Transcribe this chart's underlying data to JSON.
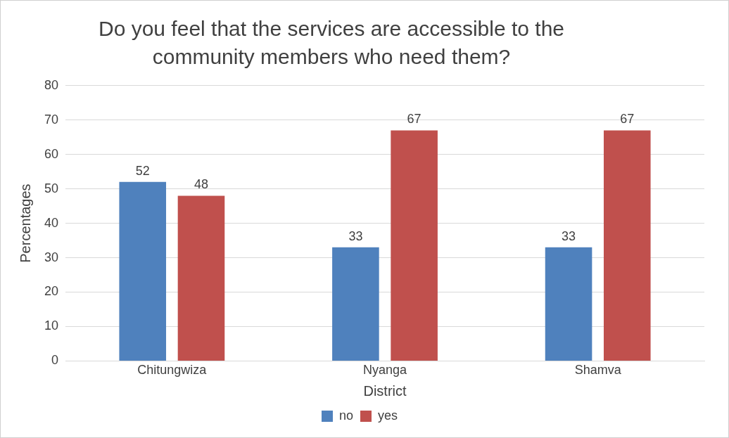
{
  "chart_data": {
    "type": "bar",
    "title": "Do you feel that the services are accessible to the community members who need them?",
    "xlabel": "District",
    "ylabel": "Percentages",
    "categories": [
      "Chitungwiza",
      "Nyanga",
      "Shamva"
    ],
    "series": [
      {
        "name": "no",
        "color": "#4f81bd",
        "values": [
          52,
          33,
          33
        ]
      },
      {
        "name": "yes",
        "color": "#c0504d",
        "values": [
          48,
          67,
          67
        ]
      }
    ],
    "ylim": [
      0,
      80
    ],
    "yticks": [
      0,
      10,
      20,
      30,
      40,
      50,
      60,
      70,
      80
    ],
    "grid": "y",
    "legend": "bottom",
    "data_labels": true
  }
}
